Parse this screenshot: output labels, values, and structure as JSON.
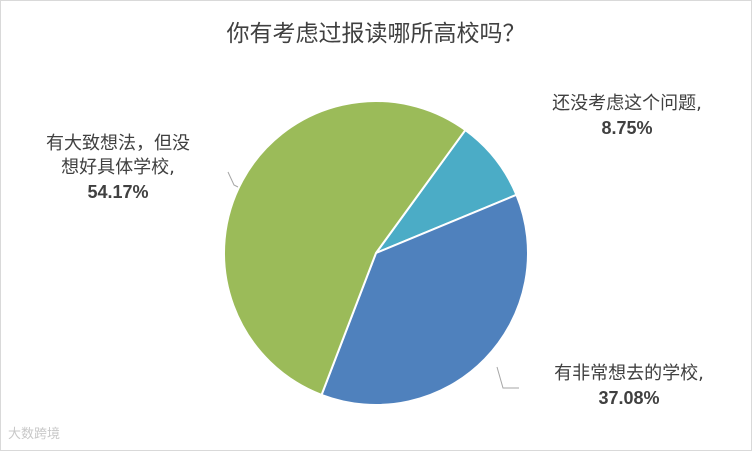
{
  "chart_data": {
    "type": "pie",
    "title": "你有考虑过报读哪所高校吗？",
    "slices": [
      {
        "label": "还没考虑这个问题,",
        "value": 8.75,
        "value_label": "8.75%",
        "color": "#4bacc6"
      },
      {
        "label": "有非常想去的学校,",
        "value": 37.08,
        "value_label": "37.08%",
        "color": "#4f81bd"
      },
      {
        "label": "有大致想法，但没想好具体学校,",
        "value": 54.17,
        "value_label": "54.17%",
        "color": "#9bbb59"
      }
    ],
    "legend": "none",
    "start_angle_deg": 36
  },
  "labels": {
    "s0_line1": "还没考虑这个问题,",
    "s1_line1": "有非常想去的学校,",
    "s2_line1": "有大致想法，但没",
    "s2_line2": "想好具体学校,"
  },
  "watermark": "大数跨境"
}
